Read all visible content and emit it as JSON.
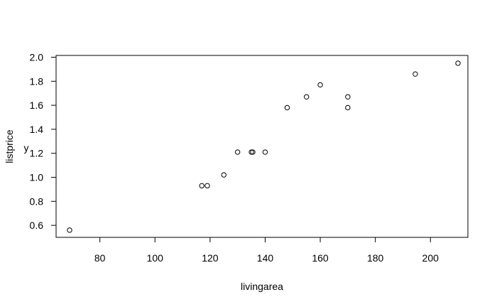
{
  "chart_data": {
    "type": "scatter",
    "title": "",
    "xlabel": "livingarea",
    "ylabel": "listprice",
    "stray_label": "y",
    "xlim": [
      64.1,
      213.6
    ],
    "ylim": [
      0.5,
      2.015
    ],
    "grid": false,
    "x_ticks": [
      80,
      100,
      120,
      140,
      160,
      180,
      200
    ],
    "y_ticks": [
      0.6,
      0.8,
      1.0,
      1.2,
      1.4,
      1.6,
      1.8,
      2.0
    ],
    "x_tick_labels": [
      "80",
      "100",
      "120",
      "140",
      "160",
      "180",
      "200"
    ],
    "y_tick_labels": [
      "0.6",
      "0.8",
      "1.0",
      "1.2",
      "1.4",
      "1.6",
      "1.8",
      "2.0"
    ],
    "series": [
      {
        "points": [
          {
            "x": 69,
            "y": 0.56
          },
          {
            "x": 117,
            "y": 0.93
          },
          {
            "x": 119,
            "y": 0.93
          },
          {
            "x": 125,
            "y": 1.02
          },
          {
            "x": 130,
            "y": 1.21
          },
          {
            "x": 135,
            "y": 1.21
          },
          {
            "x": 135.5,
            "y": 1.21
          },
          {
            "x": 140,
            "y": 1.21
          },
          {
            "x": 148,
            "y": 1.58
          },
          {
            "x": 155,
            "y": 1.67
          },
          {
            "x": 160,
            "y": 1.77
          },
          {
            "x": 170,
            "y": 1.67
          },
          {
            "x": 170,
            "y": 1.58
          },
          {
            "x": 194.5,
            "y": 1.86
          },
          {
            "x": 210,
            "y": 1.95
          }
        ]
      }
    ]
  }
}
